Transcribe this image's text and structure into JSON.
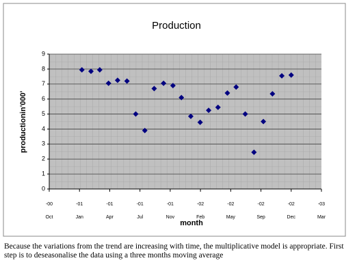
{
  "chart_data": {
    "type": "scatter",
    "title": "Production",
    "y_label": "productionin'000'",
    "x_label": "month",
    "x": [
      1.08,
      1.38,
      1.67,
      1.96,
      2.26,
      2.57,
      2.86,
      3.16,
      3.47,
      3.78,
      4.09,
      4.37,
      4.68,
      4.99,
      5.27,
      5.58,
      5.89,
      6.18,
      6.48,
      6.77,
      7.08,
      7.38,
      7.69,
      8.0
    ],
    "values": [
      7.95,
      7.85,
      7.95,
      7.05,
      7.25,
      7.2,
      5.0,
      3.9,
      6.7,
      7.05,
      6.9,
      6.1,
      4.85,
      4.45,
      5.25,
      5.45,
      6.4,
      6.8,
      5.0,
      2.45,
      4.5,
      6.35,
      7.55,
      7.6
    ],
    "color": "#000080",
    "xlim": [
      0,
      9
    ],
    "xticks": [
      {
        "value": 0,
        "label": "-00",
        "month": "Oct"
      },
      {
        "value": 1,
        "label": "-01",
        "month": "Jan"
      },
      {
        "value": 2,
        "label": "-01",
        "month": "Apr"
      },
      {
        "value": 3,
        "label": "-01",
        "month": "Jul"
      },
      {
        "value": 4,
        "label": "-01",
        "month": "Nov"
      },
      {
        "value": 5,
        "label": "-02",
        "month": "Feb"
      },
      {
        "value": 6,
        "label": "-02",
        "month": "May"
      },
      {
        "value": 7,
        "label": "-02",
        "month": "Sep"
      },
      {
        "value": 8,
        "label": "-02",
        "month": "Dec"
      },
      {
        "value": 9,
        "label": "-03",
        "month": "Mar"
      }
    ],
    "ylim": [
      0,
      9
    ],
    "yticks": [
      0,
      1,
      2,
      3,
      4,
      5,
      6,
      7,
      8,
      9
    ],
    "grid": true
  },
  "note": "Because the variations from the trend are increasing with time, the multiplicative model is appropriate. First step is to deseasonalise the data using a three months moving average"
}
